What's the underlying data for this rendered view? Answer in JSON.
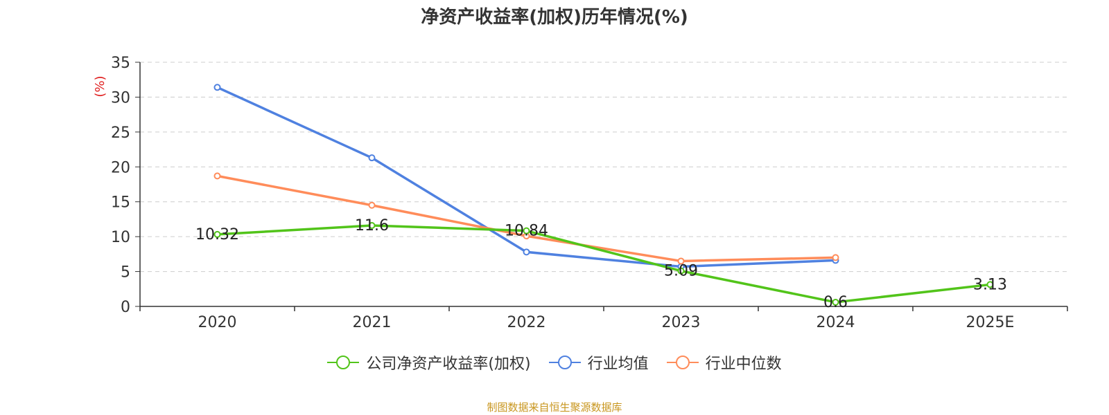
{
  "chart_data": {
    "type": "line",
    "title": "净资产收益率(加权)历年情况(%)",
    "ylabel": "(%)",
    "xlabel": "",
    "categories": [
      "2020",
      "2021",
      "2022",
      "2023",
      "2024",
      "2025E"
    ],
    "ylim": [
      0,
      35
    ],
    "yticks": [
      0,
      5,
      10,
      15,
      20,
      25,
      30,
      35
    ],
    "grid": true,
    "legend_position": "bottom-center",
    "series": [
      {
        "name": "公司净资产收益率(加权)",
        "color": "#52c41a",
        "show_labels": true,
        "values": [
          10.32,
          11.6,
          10.84,
          5.09,
          0.6,
          3.13
        ]
      },
      {
        "name": "行业均值",
        "color": "#4f81e0",
        "show_labels": false,
        "values": [
          31.4,
          21.3,
          7.8,
          5.7,
          6.6,
          null
        ]
      },
      {
        "name": "行业中位数",
        "color": "#ff8c5a",
        "show_labels": false,
        "values": [
          18.7,
          14.5,
          10.1,
          6.5,
          7.0,
          null
        ]
      }
    ]
  },
  "source_text": "制图数据来自恒生聚源数据库",
  "colors": {
    "ylabel": "#e02020",
    "source": "#c8961e",
    "axis": "#333333",
    "grid": "#cccccc"
  }
}
